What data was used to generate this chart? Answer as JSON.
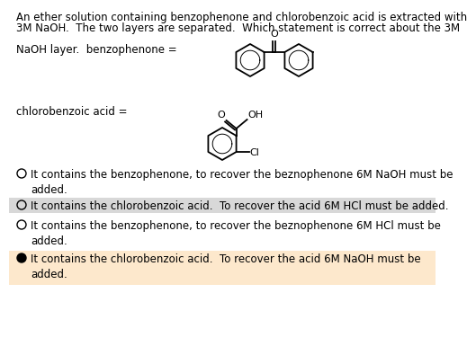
{
  "title_line1": "An ether solution containing benzophenone and chlorobenzoic acid is extracted with",
  "title_line2": "3M NaOH.  The two layers are separated.  Which statement is correct about the 3M",
  "label1": "NaOH layer.  benzophenone =",
  "label2": "chlorobenzoic acid =",
  "options": [
    "It contains the benzophenone, to recover the beznophenone 6M NaOH must be\nadded.",
    "It contains the chlorobenzoic acid.  To recover the acid 6M HCl must be added.",
    "It contains the benzophenone, to recover the beznophenone 6M HCl must be\nadded.",
    "It contains the chlorobenzoic acid.  To recover the acid 6M NaOH must be\nadded."
  ],
  "selected_option": 3,
  "option_bg_colors": [
    "#ffffff",
    "#d8d8d8",
    "#ffffff",
    "#fde8cc"
  ],
  "bg_color": "#ffffff",
  "font_size": 8.5,
  "struct_lw": 1.3
}
